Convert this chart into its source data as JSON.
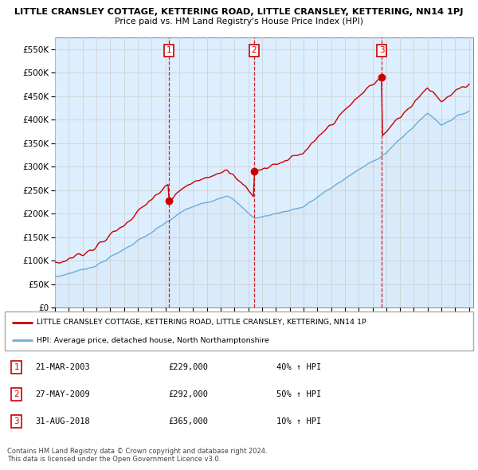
{
  "title": "LITTLE CRANSLEY COTTAGE, KETTERING ROAD, LITTLE CRANSLEY, KETTERING, NN14 1PJ",
  "subtitle": "Price paid vs. HM Land Registry's House Price Index (HPI)",
  "legend_property": "LITTLE CRANSLEY COTTAGE, KETTERING ROAD, LITTLE CRANSLEY, KETTERING, NN14 1P",
  "legend_hpi": "HPI: Average price, detached house, North Northamptonshire",
  "footer1": "Contains HM Land Registry data © Crown copyright and database right 2024.",
  "footer2": "This data is licensed under the Open Government Licence v3.0.",
  "transactions": [
    {
      "num": 1,
      "date": "21-MAR-2003",
      "price": "£229,000",
      "change": "40% ↑ HPI"
    },
    {
      "num": 2,
      "date": "27-MAY-2009",
      "price": "£292,000",
      "change": "50% ↑ HPI"
    },
    {
      "num": 3,
      "date": "31-AUG-2018",
      "price": "£365,000",
      "change": "10% ↑ HPI"
    }
  ],
  "ylim": [
    0,
    575000
  ],
  "yticks": [
    0,
    50000,
    100000,
    150000,
    200000,
    250000,
    300000,
    350000,
    400000,
    450000,
    500000,
    550000
  ],
  "property_color": "#cc0000",
  "hpi_color": "#6baed6",
  "hpi_fill_color": "#d6e8f7",
  "vline_color": "#cc0000",
  "background_color": "#ffffff",
  "grid_color": "#cccccc",
  "chart_bg": "#ddeeff"
}
